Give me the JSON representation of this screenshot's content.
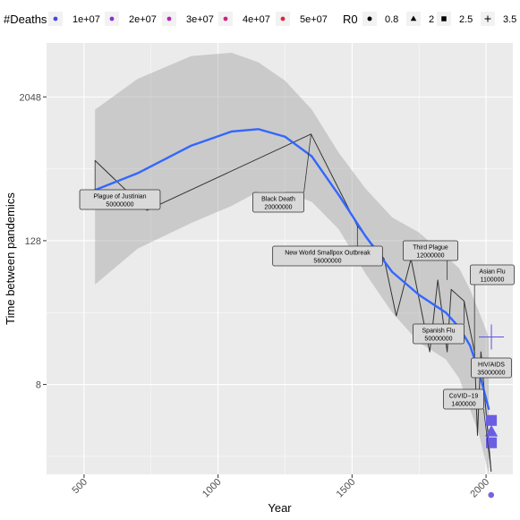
{
  "chart_data": {
    "type": "line",
    "xlabel": "Year",
    "ylabel": "Time between pandemics",
    "xlim": [
      360,
      2100
    ],
    "y_scale": "log2",
    "ylim_log2": [
      0.5,
      12.5
    ],
    "x_ticks": [
      500,
      1000,
      1500,
      2000
    ],
    "y_ticks": [
      {
        "value": 8,
        "label": "8"
      },
      {
        "value": 128,
        "label": "128"
      },
      {
        "value": 2048,
        "label": "2048"
      }
    ],
    "grid": true,
    "legend_position": "top",
    "legend_deaths": {
      "title": "#Deaths",
      "items": [
        {
          "label": "1e+07",
          "color": "#4b45e6"
        },
        {
          "label": "2e+07",
          "color": "#8b2fd6"
        },
        {
          "label": "3e+07",
          "color": "#b424b4"
        },
        {
          "label": "4e+07",
          "color": "#d41f7e"
        },
        {
          "label": "5e+07",
          "color": "#e8213b"
        }
      ]
    },
    "legend_r0": {
      "title": "R0",
      "items": [
        {
          "label": "0.8",
          "shape": "circle"
        },
        {
          "label": "2",
          "shape": "triangle"
        },
        {
          "label": "2.5",
          "shape": "square"
        },
        {
          "label": "3.5",
          "shape": "plus"
        }
      ]
    },
    "series": [
      {
        "kind": "observed",
        "color": "#333333",
        "x": [
          541,
          735,
          1347,
          1520,
          1620,
          1665,
          1720,
          1790,
          1820,
          1855,
          1870,
          1918,
          1957,
          1968,
          1981,
          2019
        ],
        "y": [
          600,
          230,
          1000,
          170,
          90,
          30,
          90,
          15,
          60,
          15,
          50,
          40,
          15,
          3,
          15,
          1.5
        ]
      },
      {
        "kind": "smooth",
        "color": "#3366ff",
        "x": [
          541,
          700,
          900,
          1050,
          1150,
          1250,
          1350,
          1450,
          1550,
          1650,
          1750,
          1850,
          1900,
          1940,
          1975,
          2010
        ],
        "y": [
          340,
          470,
          800,
          1050,
          1100,
          950,
          650,
          310,
          140,
          70,
          45,
          32,
          24,
          17,
          10,
          5
        ]
      }
    ],
    "confidence_band": {
      "x": [
        541,
        700,
        900,
        1050,
        1150,
        1250,
        1350,
        1450,
        1550,
        1650,
        1750,
        1850,
        1900,
        1940,
        1975,
        2010
      ],
      "upper": [
        1600,
        2900,
        4500,
        4800,
        4000,
        2800,
        1600,
        700,
        350,
        200,
        150,
        95,
        75,
        50,
        32,
        20
      ],
      "lower": [
        55,
        110,
        180,
        250,
        330,
        330,
        270,
        160,
        68,
        32,
        18,
        13,
        9,
        5,
        3,
        1.2
      ]
    },
    "points": [
      {
        "x": 2019,
        "y": 0.95,
        "shape": "circle",
        "color": "#7b61e0"
      },
      {
        "x": 2020,
        "y": 3.2,
        "shape": "triangle",
        "color": "#6a5fe3"
      },
      {
        "x": 2020,
        "y": 2.6,
        "shape": "square",
        "color": "#6a5fe3"
      },
      {
        "x": 2020,
        "y": 4,
        "shape": "square",
        "color": "#6a5fe3"
      },
      {
        "x": 2020,
        "y": 20,
        "shape": "plus",
        "color": "#5a52e6"
      }
    ],
    "annotations": [
      {
        "id": "plague-of-justinian",
        "line1": "Plague of Justinian",
        "line2": "50000000",
        "x": 541,
        "y": 600
      },
      {
        "id": "black-death",
        "line1": "Black Death",
        "line2": "20000000",
        "x": 1347,
        "y": 1000
      },
      {
        "id": "smallpox",
        "line1": "New World Smallpox Outbreak",
        "line2": "56000000",
        "x": 1520,
        "y": 170
      },
      {
        "id": "third-plague",
        "line1": "Third Plague",
        "line2": "12000000",
        "x": 1855,
        "y": 60
      },
      {
        "id": "spanish-flu",
        "line1": "Spanish Flu",
        "line2": "50000000",
        "x": 1918,
        "y": 40
      },
      {
        "id": "asian-flu",
        "line1": "Asian Flu",
        "line2": "1100000",
        "x": 1957,
        "y": 15
      },
      {
        "id": "hiv-aids",
        "line1": "HIV/AIDS",
        "line2": "35000000",
        "x": 1981,
        "y": 15
      },
      {
        "id": "covid",
        "line1": "CoVID−19",
        "line2": "1400000",
        "x": 2019,
        "y": 1.5
      }
    ]
  }
}
